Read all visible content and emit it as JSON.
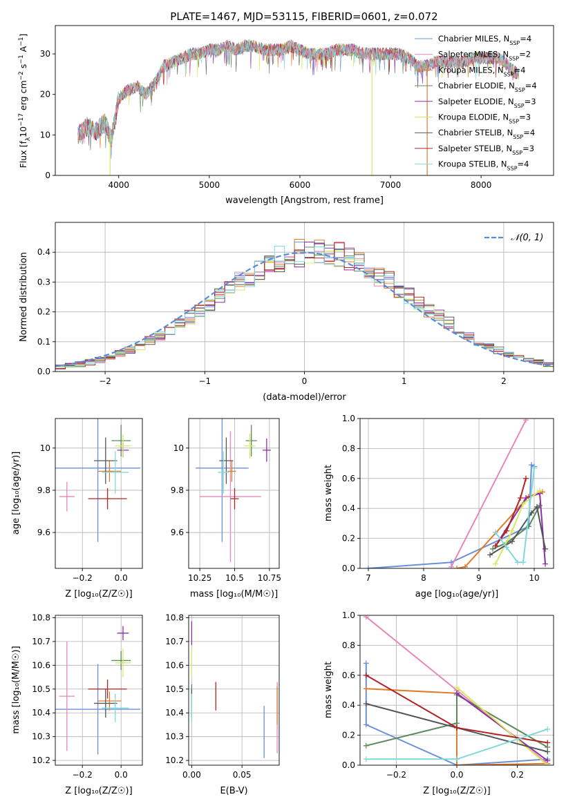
{
  "title": "PLATE=1467, MJD=53115, FIBERID=0601, z=0.072",
  "colors": {
    "chabrier_miles": "#6a8fdb",
    "salpeter_miles": "#e986b9",
    "kroupa_miles": "#e07b2a",
    "chabrier_elodie": "#5a8a5a",
    "salpeter_elodie": "#8e2fa6",
    "kroupa_elodie": "#d7e860",
    "chabrier_stelib": "#555555",
    "salpeter_stelib": "#b22222",
    "kroupa_stelib": "#7fd9dc",
    "gaussian": "#5b8bd8"
  },
  "chart_data": [
    {
      "id": "spectrum",
      "type": "line",
      "title": "PLATE=1467, MJD=53115, FIBERID=0601, z=0.072",
      "xlabel": "wavelength [Angstrom, rest frame]",
      "ylabel_main": "Flux [f",
      "ylabel_sub": "λ",
      "ylabel_mid": "10",
      "ylabel_sup1": "−17",
      "ylabel_rest": " erg cm",
      "ylabel_sup2": "−2",
      "ylabel_rest2": " s",
      "ylabel_sup3": "−1",
      "ylabel_rest3": " A",
      "ylabel_sup4": "−1",
      "ylabel_end": "]",
      "xlim": [
        3300,
        8800
      ],
      "ylim": [
        0,
        37
      ],
      "xticks": [
        4000,
        5000,
        6000,
        7000,
        8000
      ],
      "yticks": [
        0,
        10,
        20,
        30
      ],
      "grid": false,
      "legend_position": "top-right",
      "legend": [
        {
          "label": "Chabrier MILES, N",
          "sub": "SSP",
          "eq": "=4",
          "color": "#6a8fdb"
        },
        {
          "label": "Salpeter MILES, N",
          "sub": "SSP",
          "eq": "=2",
          "color": "#e986b9"
        },
        {
          "label": "Kroupa MILES, N",
          "sub": "SSP",
          "eq": "=4",
          "color": "#e07b2a"
        },
        {
          "label": "Chabrier ELODIE, N",
          "sub": "SSP",
          "eq": "=4",
          "color": "#5a8a5a"
        },
        {
          "label": "Salpeter ELODIE, N",
          "sub": "SSP",
          "eq": "=3",
          "color": "#8e2fa6"
        },
        {
          "label": "Kroupa ELODIE, N",
          "sub": "SSP",
          "eq": "=3",
          "color": "#d7e860"
        },
        {
          "label": "Chabrier STELIB, N",
          "sub": "SSP",
          "eq": "=4",
          "color": "#555555"
        },
        {
          "label": "Salpeter STELIB, N",
          "sub": "SSP",
          "eq": "=3",
          "color": "#b22222"
        },
        {
          "label": "Kroupa STELIB, N",
          "sub": "SSP",
          "eq": "=4",
          "color": "#7fd9dc"
        }
      ],
      "envelope": {
        "x": [
          3550,
          3650,
          3750,
          3850,
          3920,
          4000,
          4100,
          4200,
          4300,
          4400,
          4500,
          4600,
          4700,
          4800,
          4900,
          5000,
          5100,
          5200,
          5300,
          5400,
          5500,
          5600,
          5700,
          5800,
          5900,
          6000,
          6100,
          6200,
          6300,
          6400,
          6500,
          6600,
          6700,
          6800,
          6900,
          7000,
          7100,
          7200,
          7300,
          7400,
          7500,
          7600,
          7700,
          7800,
          7900,
          8000,
          8100,
          8200,
          8300,
          8400
        ],
        "y": [
          10,
          12,
          11,
          13,
          9,
          19,
          21,
          22,
          20,
          23,
          27,
          28,
          29,
          30,
          30,
          31,
          31,
          32,
          31,
          32,
          32,
          31,
          31,
          31,
          32,
          31,
          30,
          30,
          30,
          31,
          31,
          31,
          30,
          30,
          30,
          30,
          30,
          29,
          27,
          27,
          28,
          28,
          28,
          28,
          29,
          29,
          29,
          29,
          27,
          25
        ]
      },
      "dips": [
        {
          "x": 3905,
          "y": 0,
          "color": "#d7e860"
        },
        {
          "x": 6795,
          "y": 0,
          "color": "#d7e860"
        },
        {
          "x": 7405,
          "y": 0,
          "color": "#e07b2a"
        }
      ]
    },
    {
      "id": "residuals",
      "type": "histogram",
      "xlabel": "(data-model)/error",
      "ylabel": "Normed distribution",
      "xlim": [
        -2.5,
        2.5
      ],
      "ylim": [
        0,
        0.5
      ],
      "xticks": [
        -2,
        -1,
        0,
        1,
        2
      ],
      "yticks": [
        0.0,
        0.1,
        0.2,
        0.3,
        0.4
      ],
      "grid": true,
      "legend_position": "top-right",
      "legend_label": "𝒩(0, 1)",
      "gaussian": {
        "mean": 0,
        "sigma": 1
      },
      "bin_width": 0.1
    },
    {
      "id": "age_vs_Z",
      "type": "errorbar",
      "xlabel": "Z [log₁₀(Z/Z☉)]",
      "ylabel": "age  [log₁₀(age/yr)]",
      "xlim": [
        -0.34,
        0.11
      ],
      "ylim": [
        9.43,
        10.14
      ],
      "xticks": [
        -0.2,
        0.0
      ],
      "yticks": [
        9.6,
        9.8,
        10.0
      ],
      "grid": true,
      "points": [
        {
          "x": -0.12,
          "y": 9.905,
          "xerr": 0.22,
          "yerr": 0.35,
          "color": "#6a8fdb"
        },
        {
          "x": -0.28,
          "y": 9.77,
          "xerr": 0.04,
          "yerr": 0.07,
          "color": "#e986b9"
        },
        {
          "x": -0.06,
          "y": 9.89,
          "xerr": 0.06,
          "yerr": 0.05,
          "color": "#e07b2a"
        },
        {
          "x": 0.0,
          "y": 10.035,
          "xerr": 0.05,
          "yerr": 0.075,
          "color": "#5a8a5a"
        },
        {
          "x": 0.01,
          "y": 9.99,
          "xerr": 0.03,
          "yerr": 0.035,
          "color": "#8e2fa6"
        },
        {
          "x": 0.01,
          "y": 10.01,
          "xerr": 0.04,
          "yerr": 0.055,
          "color": "#d7e860"
        },
        {
          "x": -0.08,
          "y": 9.94,
          "xerr": 0.06,
          "yerr": 0.11,
          "color": "#555555"
        },
        {
          "x": -0.07,
          "y": 9.76,
          "xerr": 0.1,
          "yerr": 0.05,
          "color": "#b22222"
        },
        {
          "x": -0.03,
          "y": 9.885,
          "xerr": 0.07,
          "yerr": 0.1,
          "color": "#7fd9dc"
        }
      ]
    },
    {
      "id": "age_vs_mass",
      "type": "errorbar",
      "xlabel": "mass [log₁₀(M/M☉)]",
      "xlim": [
        10.17,
        10.82
      ],
      "ylim": [
        9.43,
        10.14
      ],
      "xticks": [
        10.25,
        10.5,
        10.75
      ],
      "yticks": [
        9.6,
        9.8,
        10.0
      ],
      "grid": true,
      "points": [
        {
          "x": 10.41,
          "y": 9.905,
          "xerr": 0.19,
          "yerr": 0.35,
          "color": "#6a8fdb"
        },
        {
          "x": 10.47,
          "y": 9.77,
          "xerr": 0.22,
          "yerr": 0.31,
          "color": "#e986b9"
        },
        {
          "x": 10.48,
          "y": 9.89,
          "xerr": 0.03,
          "yerr": 0.05,
          "color": "#e07b2a"
        },
        {
          "x": 10.62,
          "y": 10.035,
          "xerr": 0.04,
          "yerr": 0.075,
          "color": "#5a8a5a"
        },
        {
          "x": 10.73,
          "y": 9.99,
          "xerr": 0.03,
          "yerr": 0.055,
          "color": "#8e2fa6"
        },
        {
          "x": 10.61,
          "y": 10.01,
          "xerr": 0.04,
          "yerr": 0.06,
          "color": "#d7e860"
        },
        {
          "x": 10.44,
          "y": 9.94,
          "xerr": 0.05,
          "yerr": 0.11,
          "color": "#555555"
        },
        {
          "x": 10.5,
          "y": 9.76,
          "xerr": 0.03,
          "yerr": 0.05,
          "color": "#b22222"
        },
        {
          "x": 10.42,
          "y": 9.885,
          "xerr": 0.04,
          "yerr": 0.1,
          "color": "#7fd9dc"
        }
      ]
    },
    {
      "id": "weight_vs_age",
      "type": "line",
      "xlabel": "age  [log₁₀(age/yr)]",
      "ylabel": "mass weight",
      "xlim": [
        6.85,
        10.35
      ],
      "ylim": [
        0,
        1
      ],
      "xticks": [
        7,
        8,
        9,
        10
      ],
      "yticks": [
        0.0,
        0.2,
        0.4,
        0.6,
        0.8,
        1.0
      ],
      "grid": true,
      "series": [
        {
          "color": "#6a8fdb",
          "x": [
            7.0,
            8.5,
            9.9,
            9.95,
            10.0
          ],
          "y": [
            0.0,
            0.04,
            0.28,
            0.69,
            0.68
          ]
        },
        {
          "color": "#e986b9",
          "x": [
            8.5,
            9.85
          ],
          "y": [
            0.01,
            0.99
          ]
        },
        {
          "color": "#e07b2a",
          "x": [
            8.6,
            8.75,
            9.9,
            10.15
          ],
          "y": [
            0.0,
            0.01,
            0.48,
            0.51
          ]
        },
        {
          "color": "#5a8a5a",
          "x": [
            9.25,
            9.5,
            9.9,
            10.1
          ],
          "y": [
            0.13,
            0.17,
            0.28,
            0.42
          ]
        },
        {
          "color": "#8e2fa6",
          "x": [
            9.3,
            9.85,
            10.1,
            10.2
          ],
          "y": [
            0.15,
            0.47,
            0.5,
            0.03
          ]
        },
        {
          "color": "#d7e860",
          "x": [
            9.3,
            9.6,
            9.8,
            10.1
          ],
          "y": [
            0.03,
            0.25,
            0.43,
            0.52
          ]
        },
        {
          "color": "#555555",
          "x": [
            9.2,
            9.6,
            9.95,
            10.05,
            10.2
          ],
          "y": [
            0.09,
            0.18,
            0.37,
            0.41,
            0.13
          ]
        },
        {
          "color": "#b22222",
          "x": [
            9.3,
            9.5,
            9.75,
            9.85
          ],
          "y": [
            0.15,
            0.25,
            0.47,
            0.6
          ]
        },
        {
          "color": "#7fd9dc",
          "x": [
            9.3,
            9.5,
            9.7,
            9.8,
            10.0
          ],
          "y": [
            0.24,
            0.14,
            0.04,
            0.04,
            0.67
          ]
        }
      ]
    },
    {
      "id": "mass_vs_Z",
      "type": "errorbar",
      "xlabel": "Z [log₁₀(Z/Z☉)]",
      "ylabel": "mass [log₁₀(M/M☉)]",
      "xlim": [
        -0.34,
        0.11
      ],
      "ylim": [
        10.18,
        10.81
      ],
      "xticks": [
        -0.2,
        0.0
      ],
      "yticks": [
        10.2,
        10.3,
        10.4,
        10.5,
        10.6,
        10.7,
        10.8
      ],
      "grid": true,
      "points": [
        {
          "x": -0.12,
          "y": 10.415,
          "xerr": 0.22,
          "yerr": 0.19,
          "color": "#6a8fdb"
        },
        {
          "x": -0.28,
          "y": 10.47,
          "xerr": 0.04,
          "yerr": 0.23,
          "color": "#e986b9"
        },
        {
          "x": -0.06,
          "y": 10.45,
          "xerr": 0.06,
          "yerr": 0.04,
          "color": "#e07b2a"
        },
        {
          "x": 0.0,
          "y": 10.62,
          "xerr": 0.05,
          "yerr": 0.04,
          "color": "#5a8a5a"
        },
        {
          "x": 0.01,
          "y": 10.735,
          "xerr": 0.03,
          "yerr": 0.03,
          "color": "#8e2fa6"
        },
        {
          "x": 0.01,
          "y": 10.61,
          "xerr": 0.04,
          "yerr": 0.06,
          "color": "#d7e860"
        },
        {
          "x": -0.08,
          "y": 10.44,
          "xerr": 0.06,
          "yerr": 0.06,
          "color": "#555555"
        },
        {
          "x": -0.07,
          "y": 10.5,
          "xerr": 0.1,
          "yerr": 0.04,
          "color": "#b22222"
        },
        {
          "x": -0.03,
          "y": 10.42,
          "xerr": 0.07,
          "yerr": 0.06,
          "color": "#7fd9dc"
        }
      ]
    },
    {
      "id": "mass_vs_ebv",
      "type": "errorbar",
      "xlabel": "E(B-V)",
      "xlim": [
        -0.003,
        0.087
      ],
      "ylim": [
        10.18,
        10.81
      ],
      "xticks": [
        0.0,
        0.05
      ],
      "xtick_labels": [
        "0.00",
        "0.05"
      ],
      "yticks": [
        10.2,
        10.3,
        10.4,
        10.5,
        10.6,
        10.7,
        10.8
      ],
      "grid": true,
      "points": [
        {
          "x": 0.072,
          "y": 10.32,
          "xerr": 0.0,
          "yerr": 0.11,
          "color": "#6a8fdb"
        },
        {
          "x": 0.085,
          "y": 10.38,
          "xerr": 0.0,
          "yerr": 0.15,
          "color": "#e986b9"
        },
        {
          "x": 0.085,
          "y": 10.43,
          "xerr": 0.0,
          "yerr": 0.08,
          "color": "#e07b2a"
        },
        {
          "x": 0.0,
          "y": 10.47,
          "xerr": 0.0,
          "yerr": 0.05,
          "color": "#5a8a5a"
        },
        {
          "x": 0.0,
          "y": 10.735,
          "xerr": 0.0,
          "yerr": 0.05,
          "color": "#8e2fa6"
        },
        {
          "x": 0.0,
          "y": 10.61,
          "xerr": 0.0,
          "yerr": 0.06,
          "color": "#d7e860"
        },
        {
          "x": 0.0,
          "y": 10.44,
          "xerr": 0.0,
          "yerr": 0.06,
          "color": "#555555"
        },
        {
          "x": 0.024,
          "y": 10.47,
          "xerr": 0.0,
          "yerr": 0.06,
          "color": "#b22222"
        },
        {
          "x": 0.0,
          "y": 10.42,
          "xerr": 0.0,
          "yerr": 0.06,
          "color": "#7fd9dc"
        }
      ]
    },
    {
      "id": "weight_vs_Z",
      "type": "line",
      "xlabel": "Z [log₁₀(Z/Z☉)]",
      "ylabel": "mass weight",
      "xlim": [
        -0.32,
        0.32
      ],
      "ylim": [
        0,
        1
      ],
      "xticks": [
        -0.2,
        0.0,
        0.2
      ],
      "yticks": [
        0.0,
        0.2,
        0.4,
        0.6,
        0.8,
        1.0
      ],
      "grid": true,
      "series": [
        {
          "color": "#6a8fdb",
          "x": [
            -0.3,
            -0.3,
            0.0,
            0.3
          ],
          "y": [
            0.68,
            0.27,
            0.0,
            0.04
          ]
        },
        {
          "color": "#e986b9",
          "x": [
            -0.3,
            0.0,
            0.3
          ],
          "y": [
            0.99,
            0.5,
            0.01
          ]
        },
        {
          "color": "#e07b2a",
          "x": [
            -0.3,
            0.0,
            0.0,
            0.3
          ],
          "y": [
            0.51,
            0.48,
            0.0,
            0.01
          ]
        },
        {
          "color": "#5a8a5a",
          "x": [
            -0.3,
            0.0,
            0.0,
            0.3
          ],
          "y": [
            0.13,
            0.28,
            0.47,
            0.12
          ]
        },
        {
          "color": "#8e2fa6",
          "x": [
            0.0,
            0.3
          ],
          "y": [
            0.48,
            0.03
          ]
        },
        {
          "color": "#d7e860",
          "x": [
            0.0,
            0.3
          ],
          "y": [
            0.52,
            0.0
          ]
        },
        {
          "color": "#555555",
          "x": [
            -0.3,
            0.0,
            0.3
          ],
          "y": [
            0.41,
            0.25,
            0.09
          ]
        },
        {
          "color": "#b22222",
          "x": [
            -0.3,
            0.0,
            0.3
          ],
          "y": [
            0.6,
            0.25,
            0.15
          ]
        },
        {
          "color": "#7fd9dc",
          "x": [
            -0.3,
            0.0,
            0.3
          ],
          "y": [
            0.04,
            0.04,
            0.24
          ]
        }
      ]
    }
  ]
}
